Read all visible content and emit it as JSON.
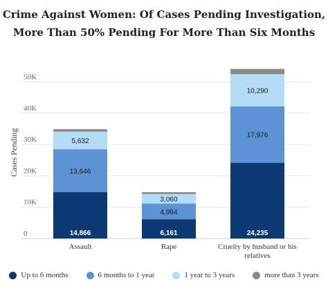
{
  "chart_data": {
    "type": "bar",
    "stacked": true,
    "title": "Crime Against Women: Of Cases Pending Investigation, More Than 50% Pending For More Than Six Months",
    "ylabel": "Cases Pending",
    "xlabel": "",
    "ylim": [
      0,
      55000
    ],
    "yticks": [
      {
        "value": 0,
        "label": "0"
      },
      {
        "value": 10000,
        "label": "10K"
      },
      {
        "value": 20000,
        "label": "20K"
      },
      {
        "value": 30000,
        "label": "30K"
      },
      {
        "value": 40000,
        "label": "40K"
      },
      {
        "value": 50000,
        "label": "50K"
      }
    ],
    "grid": true,
    "legend_position": "bottom",
    "categories": [
      {
        "label": "Assault"
      },
      {
        "label": "Rape"
      },
      {
        "label": "Cruelty by husband or his",
        "label2": "relatives"
      }
    ],
    "series": [
      {
        "name": "Up to 6 months",
        "color": "#0c3873",
        "values": [
          14866,
          6161,
          24235
        ],
        "labels": [
          "14,866",
          "6,161",
          "24,235"
        ],
        "label_color": "#ffffff"
      },
      {
        "name": "6 months to 1 year",
        "color": "#5b93d5",
        "values": [
          13646,
          4994,
          17976
        ],
        "labels": [
          "13,646",
          "4,994",
          "17,976"
        ],
        "label_color": "#1a1a1a"
      },
      {
        "name": "1 year to 3 years",
        "color": "#b3dcf6",
        "values": [
          5632,
          3060,
          10290
        ],
        "labels": [
          "5,632",
          "3,060",
          "10,290"
        ],
        "label_color": "#1a1a1a"
      },
      {
        "name": "more than 3 years",
        "color": "#8a8a8a",
        "values": [
          800,
          600,
          1700
        ],
        "labels": [
          "",
          "",
          ""
        ],
        "label_color": "#1a1a1a"
      }
    ]
  }
}
